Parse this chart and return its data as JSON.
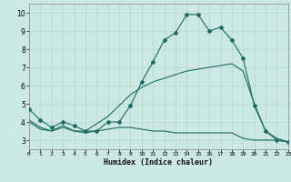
{
  "xlabel": "Humidex (Indice chaleur)",
  "xlim": [
    0,
    23
  ],
  "ylim": [
    2.5,
    10.5
  ],
  "xticks": [
    0,
    1,
    2,
    3,
    4,
    5,
    6,
    7,
    8,
    9,
    10,
    11,
    12,
    13,
    14,
    15,
    16,
    17,
    18,
    19,
    20,
    21,
    22,
    23
  ],
  "yticks": [
    3,
    4,
    5,
    6,
    7,
    8,
    9,
    10
  ],
  "bg_color": "#cce8e4",
  "grid_color": "#b8d8d4",
  "line_color": "#1a6b63",
  "line1_x": [
    0,
    1,
    2,
    3,
    4,
    5,
    6,
    7,
    8,
    9,
    10,
    11,
    12,
    13,
    14,
    15,
    16,
    17,
    18,
    19,
    20,
    21,
    22,
    23
  ],
  "line1_y": [
    4.7,
    4.1,
    3.7,
    4.0,
    3.8,
    3.5,
    3.5,
    4.0,
    4.0,
    4.9,
    6.2,
    7.3,
    8.5,
    8.9,
    9.9,
    9.9,
    9.0,
    9.2,
    8.5,
    7.5,
    4.9,
    3.5,
    3.0,
    2.9
  ],
  "line2_x": [
    0,
    1,
    2,
    3,
    4,
    5,
    6,
    7,
    8,
    9,
    10,
    11,
    12,
    13,
    14,
    15,
    16,
    17,
    18,
    19,
    20,
    21,
    22,
    23
  ],
  "line2_y": [
    4.1,
    3.7,
    3.5,
    3.8,
    3.5,
    3.5,
    3.9,
    4.3,
    4.9,
    5.5,
    5.9,
    6.2,
    6.4,
    6.6,
    6.8,
    6.9,
    7.0,
    7.1,
    7.2,
    6.8,
    5.0,
    3.5,
    3.1,
    2.9
  ],
  "line3_x": [
    0,
    1,
    2,
    3,
    4,
    5,
    6,
    7,
    8,
    9,
    10,
    11,
    12,
    13,
    14,
    15,
    16,
    17,
    18,
    19,
    20,
    21,
    22,
    23
  ],
  "line3_y": [
    4.0,
    3.6,
    3.5,
    3.7,
    3.5,
    3.4,
    3.5,
    3.6,
    3.7,
    3.7,
    3.6,
    3.5,
    3.5,
    3.4,
    3.4,
    3.4,
    3.4,
    3.4,
    3.4,
    3.1,
    3.0,
    3.0,
    3.0,
    2.9
  ],
  "xlabel_fontsize": 6.0,
  "xtick_fontsize": 4.5,
  "ytick_fontsize": 5.5
}
